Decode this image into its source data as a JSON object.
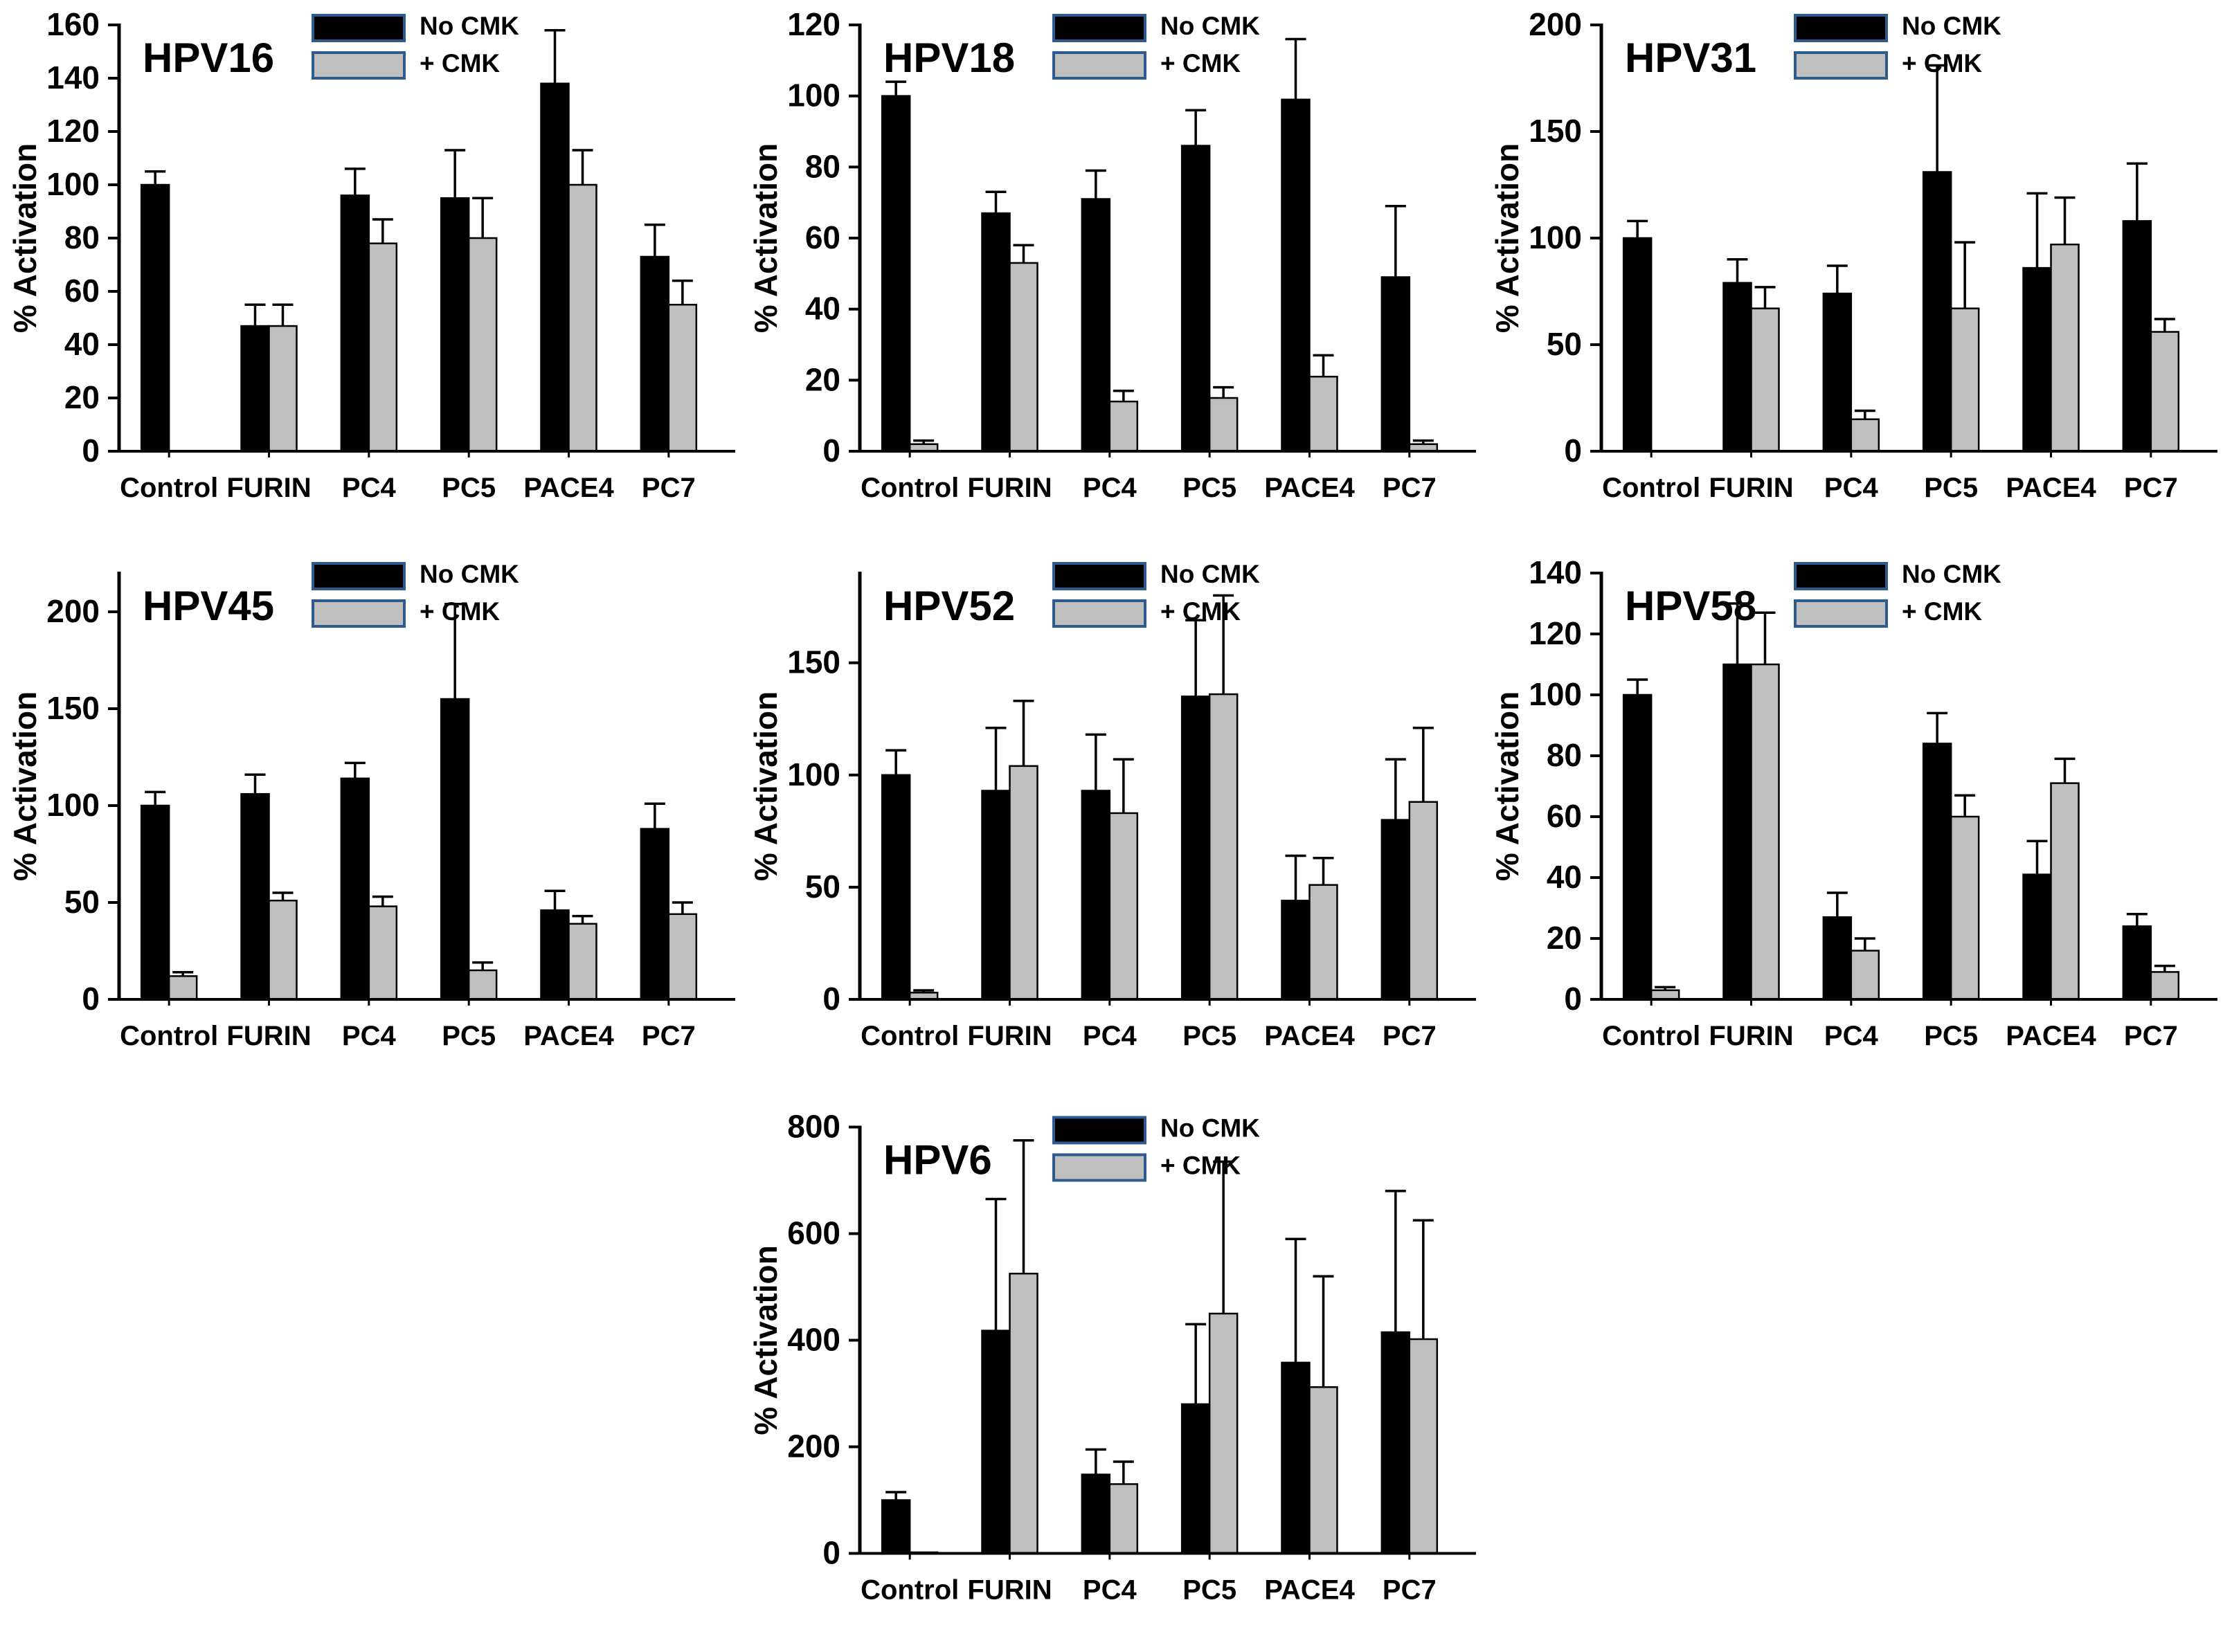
{
  "figure": {
    "legend": {
      "no_cmk_label": "No CMK",
      "cmk_label": "+ CMK"
    },
    "ylabel": "% Activation",
    "categories": [
      "Control",
      "FURIN",
      "PC4",
      "PC5",
      "PACE4",
      "PC7"
    ]
  },
  "style": {
    "no_cmk_color": "#000000",
    "cmk_color": "#BFBFBF",
    "legend_border_color": "#2E5B8F",
    "axis_color": "#000000",
    "error_bar_color": "#000000",
    "background": "#FFFFFF"
  },
  "chart_data": [
    {
      "type": "bar",
      "title": "HPV16",
      "ylabel": "% Activation",
      "xlabel": "",
      "categories": [
        "Control",
        "FURIN",
        "PC4",
        "PC5",
        "PACE4",
        "PC7"
      ],
      "ylim": [
        0,
        160
      ],
      "yticks": [
        0,
        20,
        40,
        60,
        80,
        100,
        120,
        140,
        160
      ],
      "grid": false,
      "legend_position": "top",
      "legend": [
        "No CMK",
        "+ CMK"
      ],
      "series": [
        {
          "name": "No CMK",
          "values": [
            100,
            47,
            96,
            95,
            138,
            73
          ],
          "errors": [
            5,
            8,
            10,
            18,
            20,
            12
          ]
        },
        {
          "name": "+ CMK",
          "values": [
            null,
            47,
            78,
            80,
            100,
            55
          ],
          "errors": [
            null,
            8,
            9,
            15,
            13,
            9
          ]
        }
      ]
    },
    {
      "type": "bar",
      "title": "HPV18",
      "ylabel": "% Activation",
      "xlabel": "",
      "categories": [
        "Control",
        "FURIN",
        "PC4",
        "PC5",
        "PACE4",
        "PC7"
      ],
      "ylim": [
        0,
        120
      ],
      "yticks": [
        0,
        20,
        40,
        60,
        80,
        100,
        120
      ],
      "grid": false,
      "legend_position": "top",
      "legend": [
        "No CMK",
        "+ CMK"
      ],
      "series": [
        {
          "name": "No CMK",
          "values": [
            100,
            67,
            71,
            86,
            99,
            49
          ],
          "errors": [
            4,
            6,
            8,
            10,
            17,
            20
          ]
        },
        {
          "name": "+ CMK",
          "values": [
            2,
            53,
            14,
            15,
            21,
            2
          ],
          "errors": [
            1,
            5,
            3,
            3,
            6,
            1
          ]
        }
      ]
    },
    {
      "type": "bar",
      "title": "HPV31",
      "ylabel": "% Activation",
      "xlabel": "",
      "categories": [
        "Control",
        "FURIN",
        "PC4",
        "PC5",
        "PACE4",
        "PC7"
      ],
      "ylim": [
        0,
        200
      ],
      "yticks": [
        0,
        50,
        100,
        150,
        200
      ],
      "grid": false,
      "legend_position": "top",
      "legend": [
        "No CMK",
        "+ CMK"
      ],
      "series": [
        {
          "name": "No CMK",
          "values": [
            100,
            79,
            74,
            131,
            86,
            108
          ],
          "errors": [
            8,
            11,
            13,
            50,
            35,
            27
          ]
        },
        {
          "name": "+ CMK",
          "values": [
            null,
            67,
            15,
            67,
            97,
            56
          ],
          "errors": [
            null,
            10,
            4,
            31,
            22,
            6
          ]
        }
      ]
    },
    {
      "type": "bar",
      "title": "HPV45",
      "ylabel": "% Activation",
      "xlabel": "",
      "categories": [
        "Control",
        "FURIN",
        "PC4",
        "PC5",
        "PACE4",
        "PC7"
      ],
      "ylim": [
        0,
        220
      ],
      "yticks": [
        0,
        50,
        100,
        150,
        200
      ],
      "grid": false,
      "legend_position": "top",
      "legend": [
        "No CMK",
        "+ CMK"
      ],
      "series": [
        {
          "name": "No CMK",
          "values": [
            100,
            106,
            114,
            155,
            46,
            88
          ],
          "errors": [
            7,
            10,
            8,
            49,
            10,
            13
          ]
        },
        {
          "name": "+ CMK",
          "values": [
            12,
            51,
            48,
            15,
            39,
            44
          ],
          "errors": [
            2,
            4,
            5,
            4,
            4,
            6
          ]
        }
      ]
    },
    {
      "type": "bar",
      "title": "HPV52",
      "ylabel": "% Activation",
      "xlabel": "",
      "categories": [
        "Control",
        "FURIN",
        "PC4",
        "PC5",
        "PACE4",
        "PC7"
      ],
      "ylim": [
        0,
        190
      ],
      "yticks": [
        0,
        50,
        100,
        150
      ],
      "grid": false,
      "legend_position": "top",
      "legend": [
        "No CMK",
        "+ CMK"
      ],
      "series": [
        {
          "name": "No CMK",
          "values": [
            100,
            93,
            93,
            135,
            44,
            80
          ],
          "errors": [
            11,
            28,
            25,
            34,
            20,
            27
          ]
        },
        {
          "name": "+ CMK",
          "values": [
            3,
            104,
            83,
            136,
            51,
            88
          ],
          "errors": [
            1,
            29,
            24,
            44,
            12,
            33
          ]
        }
      ]
    },
    {
      "type": "bar",
      "title": "HPV58",
      "ylabel": "% Activation",
      "xlabel": "",
      "categories": [
        "Control",
        "FURIN",
        "PC4",
        "PC5",
        "PACE4",
        "PC7"
      ],
      "ylim": [
        0,
        140
      ],
      "yticks": [
        0,
        20,
        40,
        60,
        80,
        100,
        120,
        140
      ],
      "grid": false,
      "legend_position": "top",
      "legend": [
        "No CMK",
        "+ CMK"
      ],
      "series": [
        {
          "name": "No CMK",
          "values": [
            100,
            110,
            27,
            84,
            41,
            24
          ],
          "errors": [
            5,
            20,
            8,
            10,
            11,
            4
          ]
        },
        {
          "name": "+ CMK",
          "values": [
            3,
            110,
            16,
            60,
            71,
            9
          ],
          "errors": [
            1,
            17,
            4,
            7,
            8,
            2
          ]
        }
      ]
    },
    {
      "type": "bar",
      "title": "HPV6",
      "ylabel": "% Activation",
      "xlabel": "",
      "categories": [
        "Control",
        "FURIN",
        "PC4",
        "PC5",
        "PACE4",
        "PC7"
      ],
      "ylim": [
        0,
        800
      ],
      "yticks": [
        0,
        200,
        400,
        600,
        800
      ],
      "grid": false,
      "legend_position": "top",
      "legend": [
        "No CMK",
        "+ CMK"
      ],
      "series": [
        {
          "name": "No CMK",
          "values": [
            100,
            418,
            148,
            280,
            358,
            415
          ],
          "errors": [
            15,
            247,
            47,
            150,
            232,
            265
          ]
        },
        {
          "name": "+ CMK",
          "values": [
            2,
            525,
            130,
            450,
            312,
            402
          ],
          "errors": [
            null,
            250,
            42,
            285,
            208,
            223
          ]
        }
      ]
    }
  ]
}
